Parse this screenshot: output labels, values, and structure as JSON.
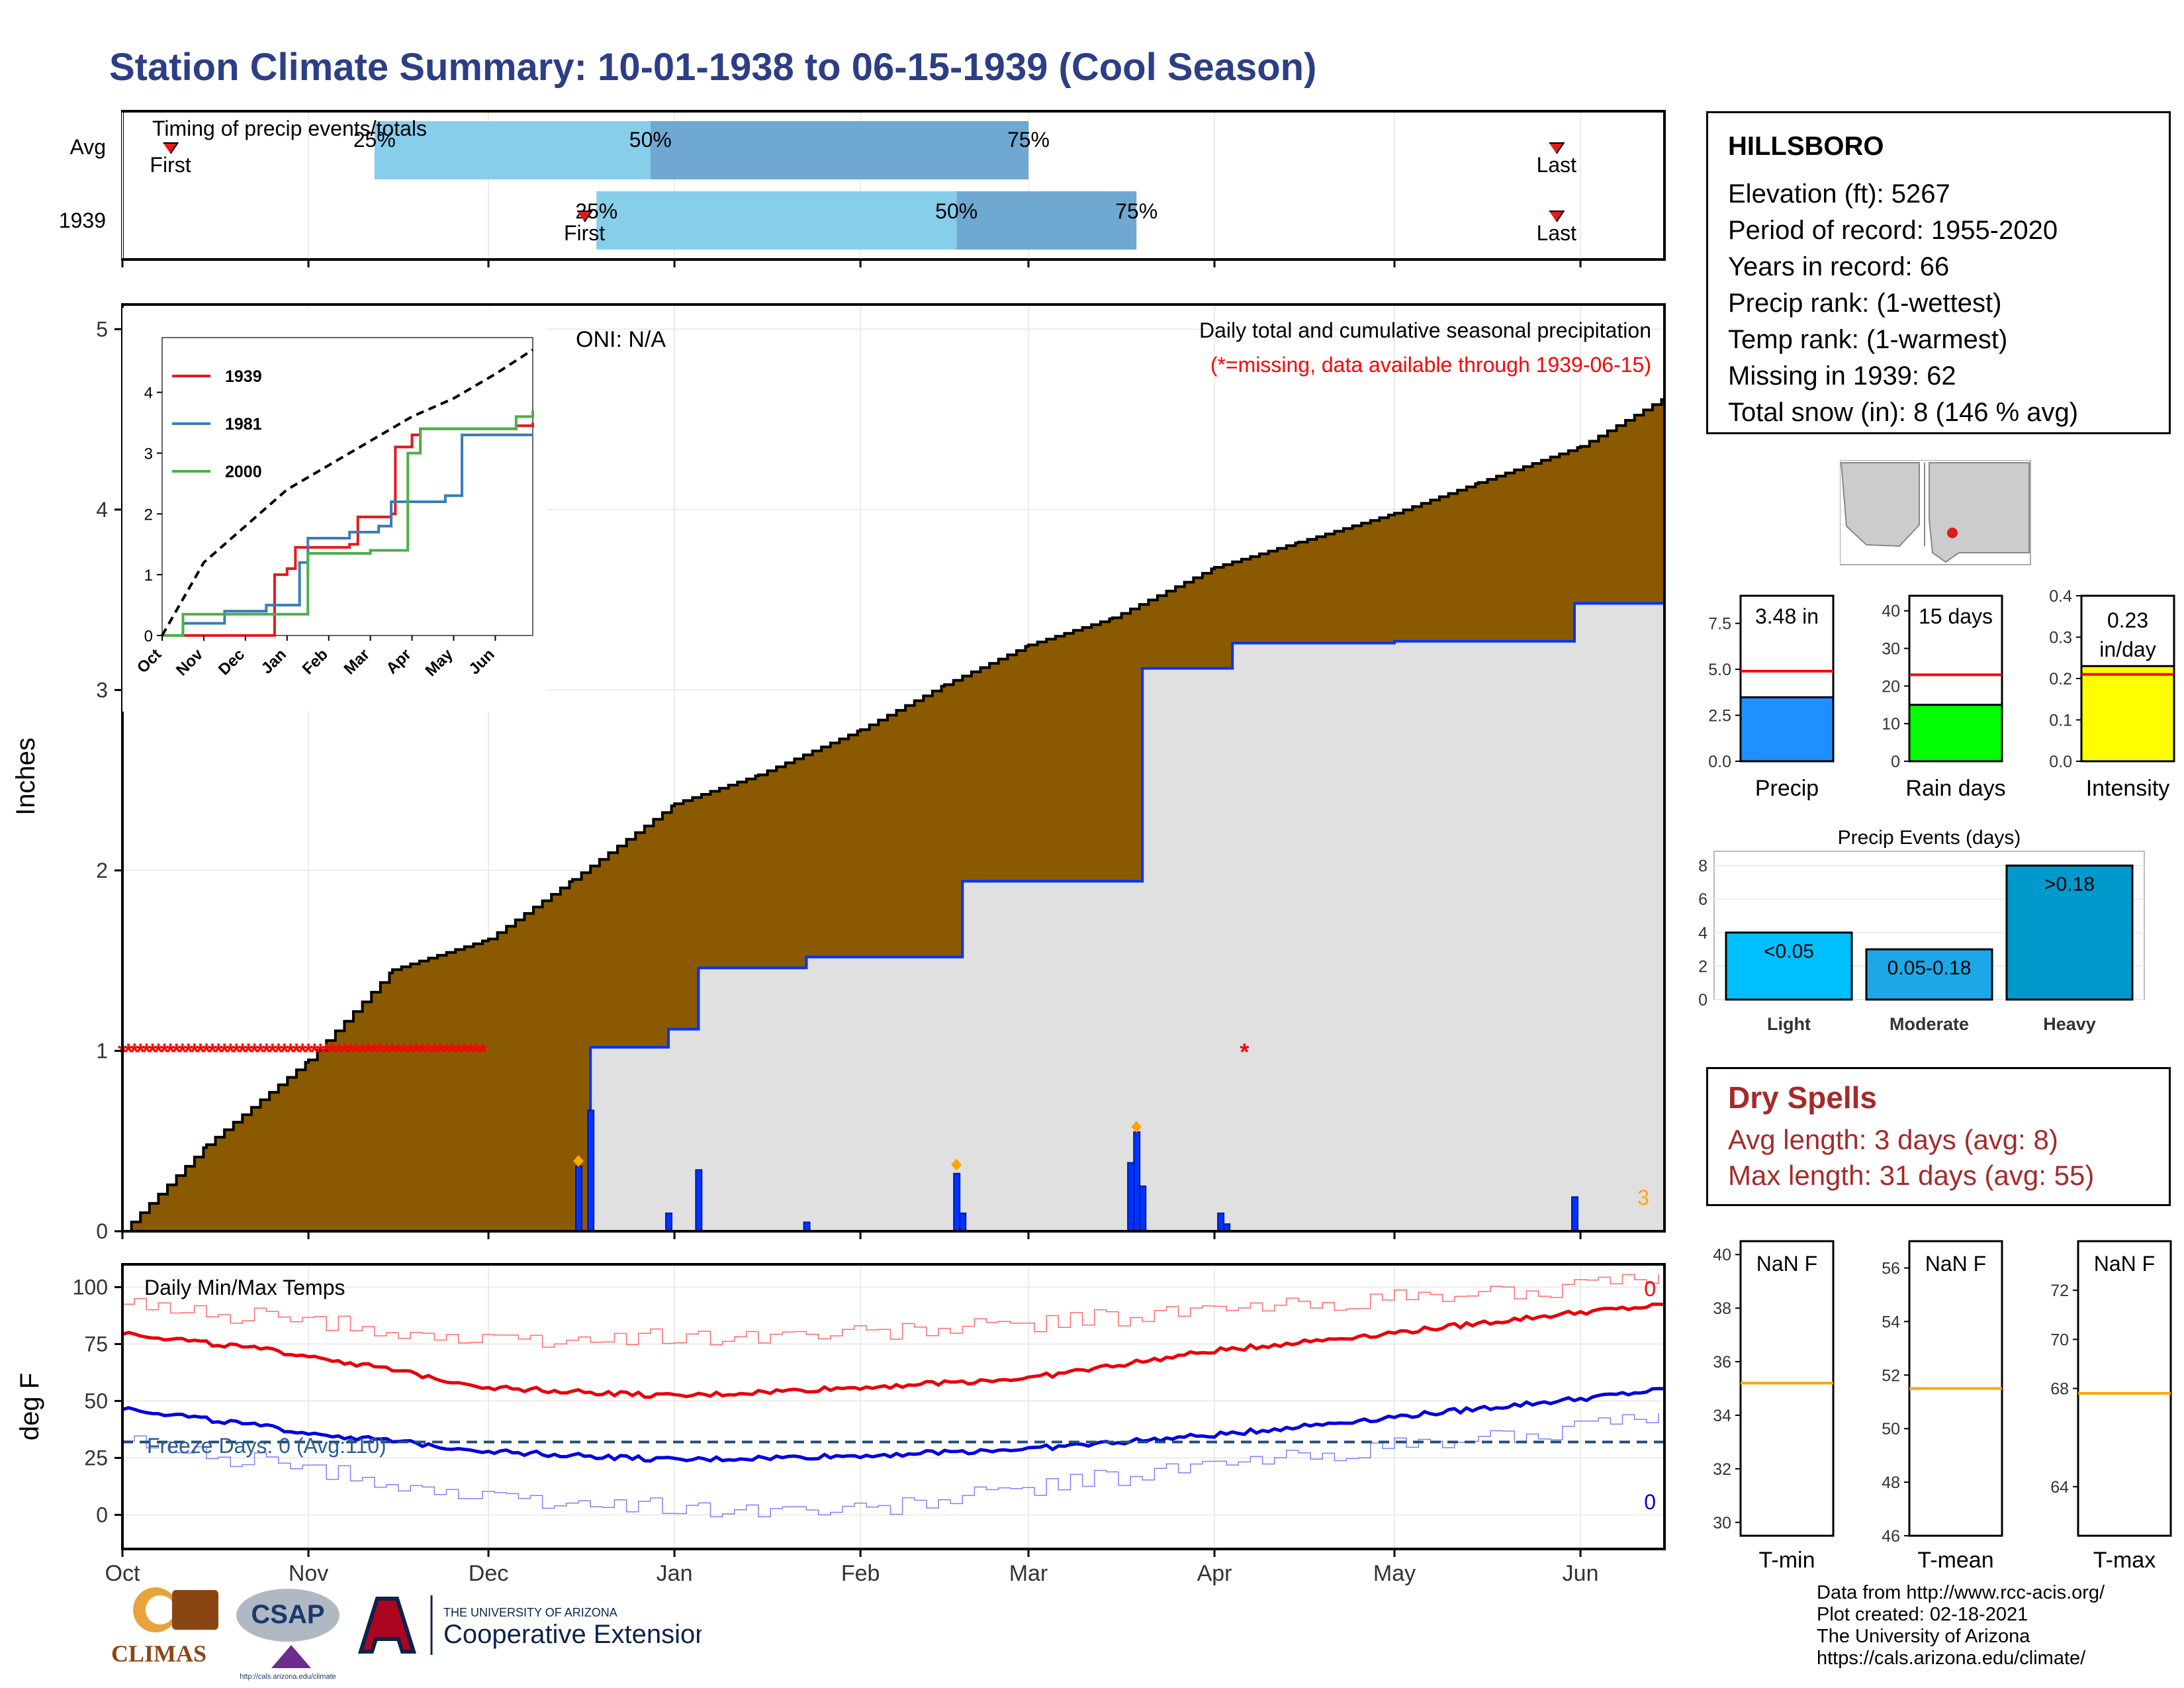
{
  "title": "Station Climate Summary: 10-01-1938 to 06-15-1939 (Cool Season)",
  "colors": {
    "title": "#2c3e86",
    "cum_fill": "#8b5a00",
    "light_blue": "#87ceeb",
    "mid_blue": "#6fa8d0",
    "precip_blue": "#0033ff",
    "missing_red": "#ff0000",
    "gray_fill": "#e0e0e0"
  },
  "timing_panel": {
    "heading": "Timing of precip events/totals",
    "rows": [
      {
        "label": "Avg",
        "first_label": "First",
        "last_label": "Last",
        "first": "Oct 9",
        "p25": "Nov 12",
        "p50": "Dec 28",
        "p75": "Mar 1",
        "last": "May 28",
        "p25_label": "25%",
        "p50_label": "50%",
        "p75_label": "75%"
      },
      {
        "label": "1939",
        "first_label": "First",
        "last_label": "Last",
        "first": "Dec 17",
        "p25": "Dec 19",
        "p50": "Feb 17",
        "p75": "Mar 19",
        "last": "May 28",
        "p25_label": "25%",
        "p50_label": "50%",
        "p75_label": "75%"
      }
    ]
  },
  "precip_panel": {
    "ylabel": "Inches",
    "oni": "ONI: N/A",
    "subtitle": "Daily total and cumulative seasonal precipitation",
    "missing_note": "(*=missing, data available through 1939-06-15)",
    "corner_count": "3",
    "yticks": [
      "0",
      "1",
      "2",
      "3",
      "4",
      "5"
    ]
  },
  "chart_data": [
    {
      "type": "area",
      "name": "Daily total and cumulative seasonal precipitation",
      "x_axis": "date",
      "ylim": [
        0,
        5
      ],
      "series": [
        {
          "name": "average cumulative",
          "x": [
            "1938-10-01",
            "1938-10-15",
            "1938-11-01",
            "1938-11-15",
            "1938-12-01",
            "1938-12-15",
            "1939-01-01",
            "1939-01-15",
            "1939-02-01",
            "1939-02-15",
            "1939-03-01",
            "1939-03-15",
            "1939-04-01",
            "1939-04-15",
            "1939-05-01",
            "1939-05-15",
            "1939-06-01",
            "1939-06-15"
          ],
          "values": [
            0,
            0.48,
            0.95,
            1.45,
            1.62,
            1.95,
            2.37,
            2.53,
            2.78,
            3.03,
            3.25,
            3.4,
            3.68,
            3.82,
            3.98,
            4.15,
            4.35,
            4.62
          ]
        },
        {
          "name": "1939 cumulative",
          "x": [
            "1938-10-01",
            "1938-12-16",
            "1938-12-18",
            "1938-12-31",
            "1939-01-05",
            "1939-01-23",
            "1939-02-17",
            "1939-02-18",
            "1939-03-19",
            "1939-03-20",
            "1939-04-02",
            "1939-04-04",
            "1939-05-01",
            "1939-05-31",
            "1939-06-15"
          ],
          "values": [
            0,
            0,
            1.02,
            1.12,
            1.46,
            1.52,
            1.52,
            1.94,
            1.94,
            3.12,
            3.12,
            3.26,
            3.27,
            3.48,
            3.48
          ]
        }
      ],
      "daily_precip_1939": [
        {
          "date": "1938-12-16",
          "value": 0.36
        },
        {
          "date": "1938-12-18",
          "value": 0.67
        },
        {
          "date": "1938-12-31",
          "value": 0.1
        },
        {
          "date": "1939-01-05",
          "value": 0.34
        },
        {
          "date": "1939-01-23",
          "value": 0.05
        },
        {
          "date": "1939-02-17",
          "value": 0.32
        },
        {
          "date": "1939-02-18",
          "value": 0.1
        },
        {
          "date": "1939-03-18",
          "value": 0.38
        },
        {
          "date": "1939-03-19",
          "value": 0.55
        },
        {
          "date": "1939-03-20",
          "value": 0.25
        },
        {
          "date": "1939-04-02",
          "value": 0.1
        },
        {
          "date": "1939-04-03",
          "value": 0.04
        },
        {
          "date": "1939-05-31",
          "value": 0.19
        }
      ],
      "missing_days": {
        "from": "1938-10-01",
        "to": "1938-11-30",
        "value": 1,
        "extra": [
          "1939-04-06"
        ]
      }
    },
    {
      "type": "line",
      "name": "inset cumulative comparison",
      "x_ticks": [
        "Oct",
        "Nov",
        "Dec",
        "Jan",
        "Feb",
        "Mar",
        "Apr",
        "May",
        "Jun"
      ],
      "yticks": [
        "0",
        "1",
        "2",
        "3",
        "4"
      ],
      "ylim": [
        0,
        4.9
      ],
      "series": [
        {
          "name": "1939",
          "color": "#e41a1c",
          "x": [
            0,
            2.6,
            2.7,
            3.0,
            3.2,
            4.5,
            4.7,
            5.5,
            5.6,
            6.0,
            6.2,
            7.5,
            8.5,
            8.9
          ],
          "values": [
            0,
            0,
            1.0,
            1.1,
            1.45,
            1.5,
            1.95,
            2.0,
            3.1,
            3.3,
            3.4,
            3.4,
            3.45,
            3.5
          ]
        },
        {
          "name": "1981",
          "color": "#377eb8",
          "x": [
            0,
            0.5,
            1.5,
            2.5,
            3.3,
            3.5,
            4.5,
            5.2,
            5.5,
            6.8,
            7.2,
            8.9
          ],
          "values": [
            0,
            0.2,
            0.4,
            0.5,
            1.2,
            1.6,
            1.7,
            1.8,
            2.2,
            2.3,
            3.3,
            3.3
          ]
        },
        {
          "name": "2000",
          "color": "#4daf4a",
          "x": [
            0,
            0.5,
            3.0,
            3.5,
            5.0,
            5.6,
            5.9,
            6.2,
            8.0,
            8.5,
            8.9
          ],
          "values": [
            0,
            0.35,
            0.35,
            1.35,
            1.4,
            1.4,
            3.0,
            3.4,
            3.4,
            3.6,
            3.7
          ]
        },
        {
          "name": "average",
          "color": "#000000",
          "x": [
            0,
            1,
            2,
            3,
            4,
            5,
            6,
            7,
            8,
            8.9
          ],
          "values": [
            0,
            1.2,
            1.8,
            2.4,
            2.8,
            3.2,
            3.6,
            3.9,
            4.3,
            4.7
          ]
        }
      ]
    },
    {
      "type": "bar",
      "name": "Precip",
      "value_label": "3.48 in",
      "values": [
        3.48
      ],
      "avg": 4.9,
      "yticks": [
        "0.0",
        "2.5",
        "5.0",
        "7.5"
      ],
      "ylim": [
        0,
        9
      ]
    },
    {
      "type": "bar",
      "name": "Rain days",
      "value_label": "15 days",
      "values": [
        15
      ],
      "avg": 23,
      "yticks": [
        "0",
        "10",
        "20",
        "30",
        "40"
      ],
      "ylim": [
        0,
        44
      ]
    },
    {
      "type": "bar",
      "name": "Intensity",
      "value_label": "0.23 in/day",
      "values": [
        0.23
      ],
      "avg": 0.21,
      "yticks": [
        "0.0",
        "0.1",
        "0.2",
        "0.3",
        "0.4"
      ],
      "ylim": [
        0,
        0.4
      ]
    },
    {
      "type": "bar",
      "name": "Precip Events (days)",
      "categories": [
        "Light",
        "Moderate",
        "Heavy"
      ],
      "bar_labels": [
        "<0.05",
        "0.05-0.18",
        ">0.18"
      ],
      "values": [
        4,
        3,
        8
      ],
      "yticks": [
        "0",
        "2",
        "4",
        "6",
        "8"
      ],
      "ylim": [
        0,
        8.3
      ]
    },
    {
      "type": "line",
      "name": "Daily Min/Max Temps",
      "ylabel": "deg F",
      "yticks": [
        "0",
        "25",
        "50",
        "75",
        "100"
      ],
      "ylim": [
        -15,
        110
      ],
      "freeze_line": 32,
      "series": [
        {
          "name": "max avg",
          "x": [
            "Oct 1",
            "Nov 1",
            "Dec 1",
            "Jan 1",
            "Feb 1",
            "Mar 1",
            "Apr 1",
            "May 1",
            "Jun 1",
            "Jun 15"
          ],
          "values": [
            80,
            70,
            56,
            52,
            56,
            60,
            72,
            80,
            89,
            92
          ]
        },
        {
          "name": "min avg",
          "x": [
            "Oct 1",
            "Nov 1",
            "Dec 1",
            "Jan 1",
            "Feb 1",
            "Mar 1",
            "Apr 1",
            "May 1",
            "Jun 1",
            "Jun 15"
          ],
          "values": [
            47,
            36,
            28,
            24,
            26,
            29,
            35,
            43,
            51,
            55
          ]
        },
        {
          "name": "max extremes",
          "x": [
            "Oct 1",
            "Nov 1",
            "Dec 1",
            "Jan 1",
            "Feb 1",
            "Mar 1",
            "Apr 1",
            "May 1",
            "Jun 1",
            "Jun 15"
          ],
          "values": [
            92,
            85,
            76,
            78,
            80,
            84,
            90,
            95,
            100,
            103
          ]
        },
        {
          "name": "min extremes",
          "x": [
            "Oct 1",
            "Nov 1",
            "Dec 1",
            "Jan 1",
            "Feb 1",
            "Mar 1",
            "Apr 1",
            "May 1",
            "Jun 1",
            "Jun 15"
          ],
          "values": [
            32,
            20,
            7,
            3,
            2,
            12,
            22,
            30,
            38,
            42
          ]
        }
      ]
    },
    {
      "type": "bar",
      "name": "T-min",
      "value_label": "NaN F",
      "avg": 35.2,
      "yticks": [
        "30",
        "32",
        "34",
        "36",
        "38",
        "40"
      ],
      "ylim": [
        29.5,
        40.5
      ]
    },
    {
      "type": "bar",
      "name": "T-mean",
      "value_label": "NaN F",
      "avg": 51.5,
      "yticks": [
        "46",
        "48",
        "50",
        "52",
        "54",
        "56"
      ],
      "ylim": [
        46,
        57
      ]
    },
    {
      "type": "bar",
      "name": "T-max",
      "value_label": "NaN F",
      "avg": 67.8,
      "yticks": [
        "64",
        "68",
        "70",
        "72"
      ],
      "ylim": [
        62,
        74
      ]
    }
  ],
  "month_labels": [
    "Oct",
    "Nov",
    "Dec",
    "Jan",
    "Feb",
    "Mar",
    "Apr",
    "May",
    "Jun"
  ],
  "temp_panel": {
    "heading": "Daily Min/Max Temps",
    "freeze": "Freeze Days: 0 (Avg:110)",
    "ylabel": "deg F",
    "max_count": "0",
    "min_count": "0"
  },
  "info": {
    "station": "HILLSBORO",
    "lines": [
      "Elevation (ft): 5267",
      "Period of record: 1955-2020",
      "Years in record: 66",
      "Precip rank:  (1-wettest)",
      "Temp rank:  (1-warmest)",
      "Missing in 1939: 62",
      "Total snow (in): 8 (146 % avg)"
    ]
  },
  "dry_spells": {
    "title": "Dry Spells",
    "avg": "Avg length: 3 days (avg: 8)",
    "max": "Max length: 31 days (avg: 55)"
  },
  "credits": [
    "Data from http://www.rcc-acis.org/",
    "Plot created: 02-18-2021",
    "The University of Arizona",
    "https://cals.arizona.edu/climate/"
  ],
  "logos": {
    "climas": "CLIMAS",
    "csap": "CSAP",
    "csap_url": "http://cals.arizona.edu/climate",
    "ua_line1": "THE UNIVERSITY OF ARIZONA",
    "ua_line2": "Cooperative Extension"
  }
}
